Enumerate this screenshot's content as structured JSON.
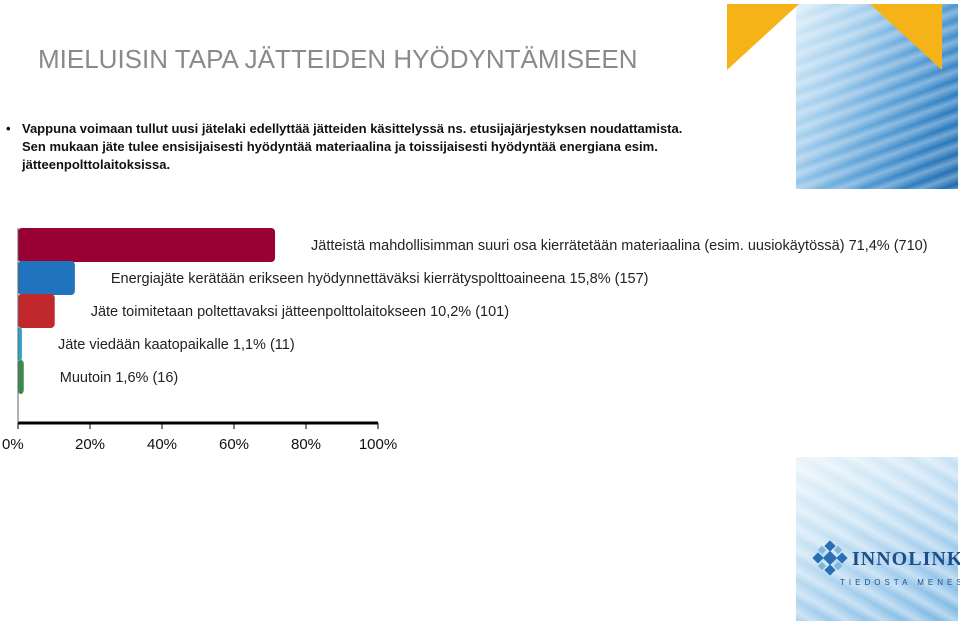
{
  "title": "MIELUISIN TAPA JÄTTEIDEN HYÖDYNTÄMISEEN",
  "bullet": {
    "lines": [
      "Vappuna voimaan tullut uusi jätelaki edellyttää jätteiden käsittelyssä ns. etusijajärjestyksen noudattamista.",
      "Sen mukaan jäte tulee ensisijaisesti hyödyntää materiaalina ja toissijaisesti hyödyntää energiana esim.",
      "jätteenpolttolaitoksissa."
    ]
  },
  "logo": {
    "name": "INNOLINK",
    "tagline": "TIEDOSTA MENESTYS"
  },
  "chart_data": {
    "type": "bar",
    "orientation": "horizontal",
    "categories": [
      "Jätteistä mahdollisimman suuri osa kierrätetään materiaalina (esim. uusiokäytössä) 71,4% (710)",
      "Energiajäte kerätään erikseen hyödynnettäväksi kierrätyspolttoaineena  15,8% (157)",
      "Jäte toimitetaan poltettavaksi jätteenpolttolaitokseen 10,2% (101)",
      "Jäte viedään kaatopaikalle 1,1% (11)",
      "Muutoin 1,6% (16)"
    ],
    "values": [
      71.4,
      15.8,
      10.2,
      1.1,
      1.6
    ],
    "colors": [
      "#990033",
      "#1f74bd",
      "#c0282d",
      "#2aa6c8",
      "#3c8a4e"
    ],
    "xlim": [
      0,
      100
    ],
    "xticks": [
      "0%",
      "20%",
      "40%",
      "60%",
      "80%",
      "100%"
    ],
    "xlabel": "",
    "ylabel": ""
  }
}
